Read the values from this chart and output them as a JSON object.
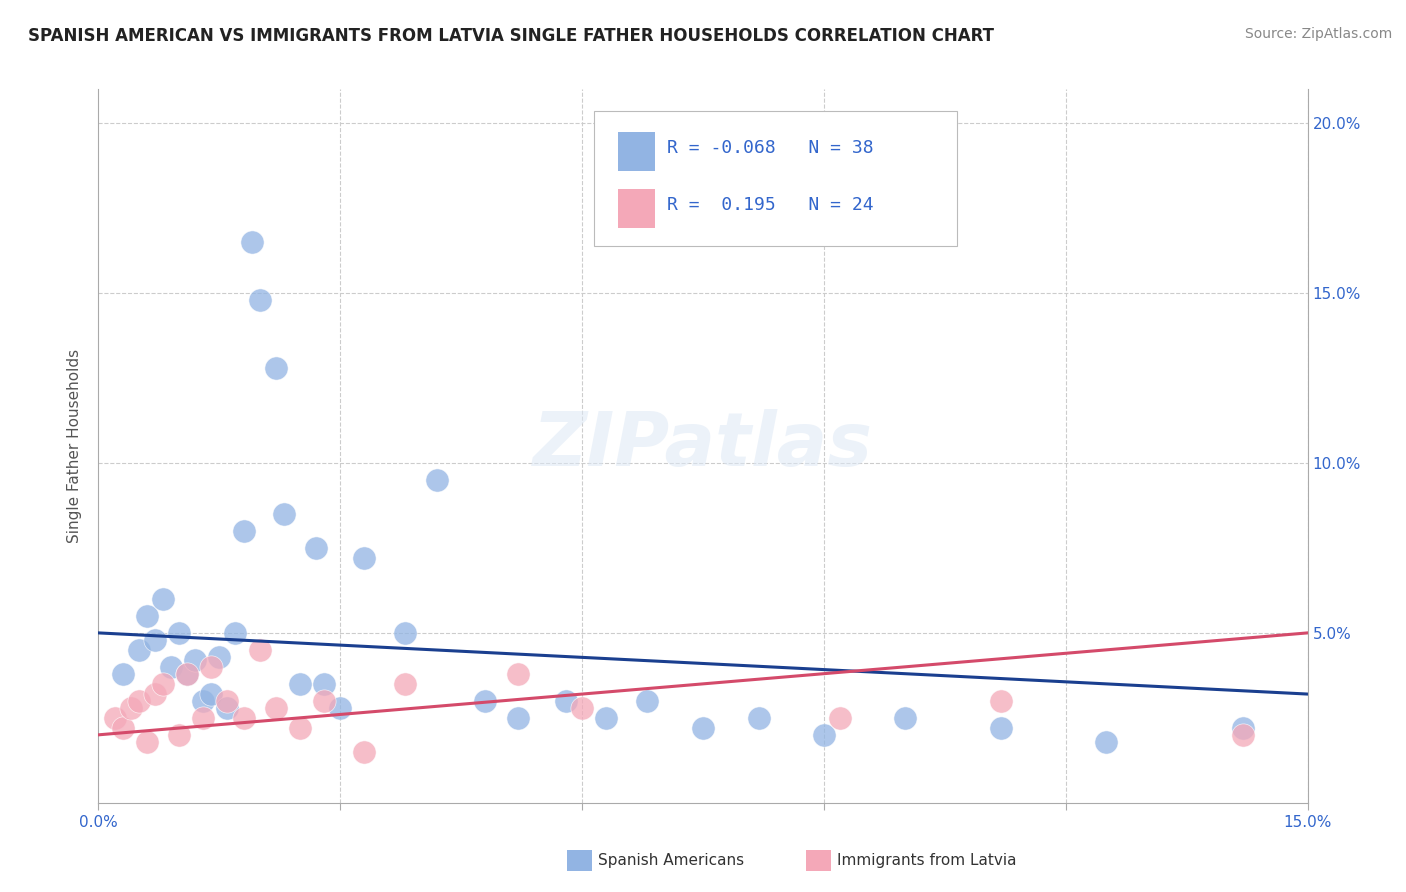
{
  "title": "SPANISH AMERICAN VS IMMIGRANTS FROM LATVIA SINGLE FATHER HOUSEHOLDS CORRELATION CHART",
  "source": "Source: ZipAtlas.com",
  "ylabel": "Single Father Households",
  "xlim": [
    0.0,
    0.15
  ],
  "ylim": [
    0.0,
    0.21
  ],
  "blue_R": -0.068,
  "blue_N": 38,
  "pink_R": 0.195,
  "pink_N": 24,
  "blue_color": "#92b4e3",
  "pink_color": "#f4a8b8",
  "blue_line_color": "#1a3f8f",
  "pink_line_color": "#d44a6a",
  "grid_color": "#cccccc",
  "background_color": "#ffffff",
  "title_fontsize": 12,
  "label_fontsize": 11,
  "legend_fontsize": 13,
  "source_fontsize": 10,
  "blue_scatter_x": [
    0.003,
    0.005,
    0.006,
    0.007,
    0.008,
    0.009,
    0.01,
    0.011,
    0.012,
    0.013,
    0.014,
    0.015,
    0.016,
    0.017,
    0.018,
    0.019,
    0.02,
    0.022,
    0.023,
    0.025,
    0.027,
    0.028,
    0.03,
    0.033,
    0.038,
    0.042,
    0.048,
    0.052,
    0.058,
    0.063,
    0.068,
    0.075,
    0.082,
    0.09,
    0.1,
    0.112,
    0.125,
    0.142
  ],
  "blue_scatter_y": [
    0.038,
    0.045,
    0.055,
    0.048,
    0.06,
    0.04,
    0.05,
    0.038,
    0.042,
    0.03,
    0.032,
    0.043,
    0.028,
    0.05,
    0.08,
    0.165,
    0.148,
    0.128,
    0.085,
    0.035,
    0.075,
    0.035,
    0.028,
    0.072,
    0.05,
    0.095,
    0.03,
    0.025,
    0.03,
    0.025,
    0.03,
    0.022,
    0.025,
    0.02,
    0.025,
    0.022,
    0.018,
    0.022
  ],
  "pink_scatter_x": [
    0.002,
    0.003,
    0.004,
    0.005,
    0.006,
    0.007,
    0.008,
    0.01,
    0.011,
    0.013,
    0.014,
    0.016,
    0.018,
    0.02,
    0.022,
    0.025,
    0.028,
    0.033,
    0.038,
    0.052,
    0.06,
    0.092,
    0.112,
    0.142
  ],
  "pink_scatter_y": [
    0.025,
    0.022,
    0.028,
    0.03,
    0.018,
    0.032,
    0.035,
    0.02,
    0.038,
    0.025,
    0.04,
    0.03,
    0.025,
    0.045,
    0.028,
    0.022,
    0.03,
    0.015,
    0.035,
    0.038,
    0.028,
    0.025,
    0.03,
    0.02
  ],
  "blue_line_x0": 0.0,
  "blue_line_y0": 0.05,
  "blue_line_x1": 0.15,
  "blue_line_y1": 0.032,
  "pink_line_x0": 0.0,
  "pink_line_y0": 0.02,
  "pink_line_x1": 0.15,
  "pink_line_y1": 0.05
}
